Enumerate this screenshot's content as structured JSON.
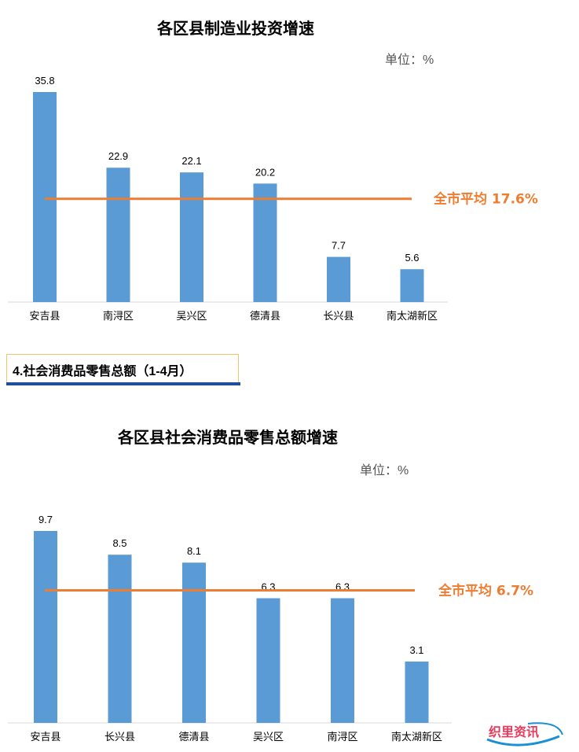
{
  "chart1": {
    "title": "各区县制造业投资增速",
    "unit": "单位：%",
    "average_label": "全市平均 17.6%"
  },
  "section": {
    "title": "4.社会消费品零售总额（1-4月）"
  },
  "chart2": {
    "title": "各区县社会消费品零售总额增速",
    "unit": "单位：%",
    "average_label": "全市平均 6.7%"
  },
  "watermark": {
    "text": "织里资讯"
  },
  "colors": {
    "bar": "#5b9bd5",
    "average_line": "#ed7d31",
    "axis": "#d9d9d9",
    "header_bar": "#1f4e9c"
  },
  "chart_data": [
    {
      "type": "bar",
      "title": "各区县制造业投资增速",
      "unit": "%",
      "categories": [
        "安吉县",
        "南浔区",
        "吴兴区",
        "德清县",
        "长兴县",
        "南太湖新区"
      ],
      "values": [
        35.8,
        22.9,
        22.1,
        20.2,
        7.7,
        5.6
      ],
      "value_labels": [
        "35.8",
        "22.9",
        "22.1",
        "20.2",
        "7.7",
        "5.6"
      ],
      "average": 17.6,
      "ylim": [
        0,
        35.8
      ],
      "grid": false,
      "legend": "none"
    },
    {
      "type": "bar",
      "title": "各区县社会消费品零售总额增速",
      "unit": "%",
      "categories": [
        "安吉县",
        "长兴县",
        "德清县",
        "吴兴区",
        "南浔区",
        "南太湖新区"
      ],
      "values": [
        9.7,
        8.5,
        8.1,
        6.3,
        6.3,
        3.1
      ],
      "value_labels": [
        "9.7",
        "8.5",
        "8.1",
        "6.3",
        "6.3",
        "3.1"
      ],
      "average": 6.7,
      "ylim": [
        0,
        9.7
      ],
      "grid": false,
      "legend": "none"
    }
  ]
}
